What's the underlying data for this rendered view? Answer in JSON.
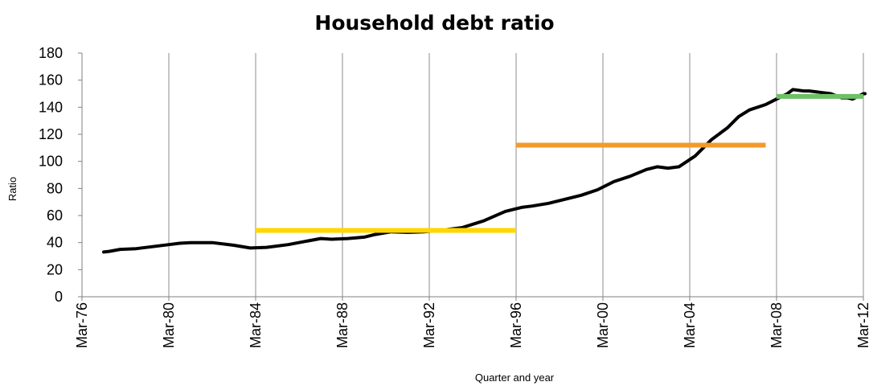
{
  "chart_data": {
    "type": "line",
    "title": "Household debt ratio",
    "xlabel": "Quarter and year",
    "ylabel": "Ratio",
    "ylim": [
      0,
      180
    ],
    "yticks": [
      0,
      20,
      40,
      60,
      80,
      100,
      120,
      140,
      160,
      180
    ],
    "xlim": [
      1976.0,
      2012.0
    ],
    "xticks": [
      {
        "value": 1976,
        "label": "Mar-76"
      },
      {
        "value": 1980,
        "label": "Mar-80"
      },
      {
        "value": 1984,
        "label": "Mar-84"
      },
      {
        "value": 1988,
        "label": "Mar-88"
      },
      {
        "value": 1992,
        "label": "Mar-92"
      },
      {
        "value": 1996,
        "label": "Mar-96"
      },
      {
        "value": 2000,
        "label": "Mar-00"
      },
      {
        "value": 2004,
        "label": "Mar-04"
      },
      {
        "value": 2008,
        "label": "Mar-08"
      },
      {
        "value": 2012,
        "label": "Mar-12"
      }
    ],
    "grid": {
      "vertical": true,
      "horizontal": false
    },
    "series": [
      {
        "color": "#000000",
        "points": [
          [
            1977.0,
            33
          ],
          [
            1977.25,
            33.5
          ],
          [
            1977.75,
            35
          ],
          [
            1978.5,
            35.5
          ],
          [
            1979.25,
            37
          ],
          [
            1980.0,
            38.5
          ],
          [
            1980.5,
            39.5
          ],
          [
            1981.0,
            40
          ],
          [
            1982.0,
            40
          ],
          [
            1983.0,
            38
          ],
          [
            1983.75,
            36
          ],
          [
            1984.5,
            36.5
          ],
          [
            1985.5,
            38.5
          ],
          [
            1986.5,
            41.5
          ],
          [
            1987.0,
            43
          ],
          [
            1987.5,
            42.5
          ],
          [
            1988.25,
            43
          ],
          [
            1989.0,
            44
          ],
          [
            1989.5,
            46
          ],
          [
            1990.25,
            48
          ],
          [
            1991.0,
            47.5
          ],
          [
            1991.75,
            48
          ],
          [
            1992.5,
            49
          ],
          [
            1993.5,
            51
          ],
          [
            1994.5,
            56
          ],
          [
            1995.5,
            63
          ],
          [
            1996.25,
            66
          ],
          [
            1996.75,
            67
          ],
          [
            1997.5,
            69
          ],
          [
            1998.25,
            72
          ],
          [
            1999.0,
            75
          ],
          [
            1999.75,
            79
          ],
          [
            2000.5,
            85
          ],
          [
            2001.25,
            89
          ],
          [
            2002.0,
            94
          ],
          [
            2002.5,
            96
          ],
          [
            2003.0,
            95
          ],
          [
            2003.5,
            96
          ],
          [
            2004.25,
            104
          ],
          [
            2005.0,
            116
          ],
          [
            2005.75,
            125
          ],
          [
            2006.25,
            133
          ],
          [
            2006.75,
            138
          ],
          [
            2007.5,
            142
          ],
          [
            2008.0,
            146
          ],
          [
            2008.5,
            150
          ],
          [
            2008.75,
            153
          ],
          [
            2009.25,
            152
          ],
          [
            2009.5,
            152
          ],
          [
            2010.0,
            151
          ],
          [
            2010.5,
            150
          ],
          [
            2011.0,
            147
          ],
          [
            2011.25,
            147
          ],
          [
            2011.5,
            146
          ],
          [
            2012.0,
            150
          ],
          [
            2012.5,
            150
          ],
          [
            2013.25,
            150
          ]
        ]
      },
      {
        "color": "#FFD700",
        "points": [
          [
            1984.0,
            49
          ],
          [
            1996.0,
            49
          ]
        ]
      },
      {
        "color": "#F39A2C",
        "points": [
          [
            1996.0,
            112
          ],
          [
            2007.5,
            112
          ]
        ]
      },
      {
        "color": "#6DC066",
        "points": [
          [
            2008.0,
            148
          ],
          [
            2012.0,
            148
          ]
        ]
      }
    ]
  }
}
